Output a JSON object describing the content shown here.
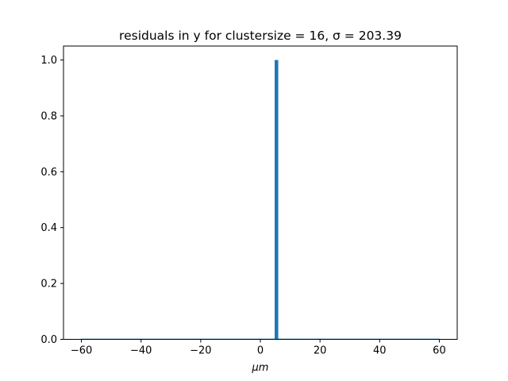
{
  "chart_data": {
    "type": "bar",
    "title": "residuals in y for clustersize = 16, σ = 203.39",
    "xlabel": "μm",
    "ylabel": "",
    "xlim": [
      -66,
      66
    ],
    "ylim": [
      0,
      1.05
    ],
    "xticks": [
      -60,
      -40,
      -20,
      0,
      20,
      40,
      60
    ],
    "yticks": [
      0.0,
      0.2,
      0.4,
      0.6,
      0.8,
      1.0
    ],
    "xtick_labels": [
      "−60",
      "−40",
      "−20",
      "0",
      "20",
      "40",
      "60"
    ],
    "ytick_labels": [
      "0.0",
      "0.2",
      "0.4",
      "0.6",
      "0.8",
      "1.0"
    ],
    "bin_range": [
      -60,
      60
    ],
    "bin_width": 1.2,
    "bars": [
      {
        "x_start": 4.8,
        "x_end": 6.0,
        "value": 1.0
      }
    ],
    "bar_color": "#1f77b4",
    "grid": false,
    "legend": "none"
  }
}
